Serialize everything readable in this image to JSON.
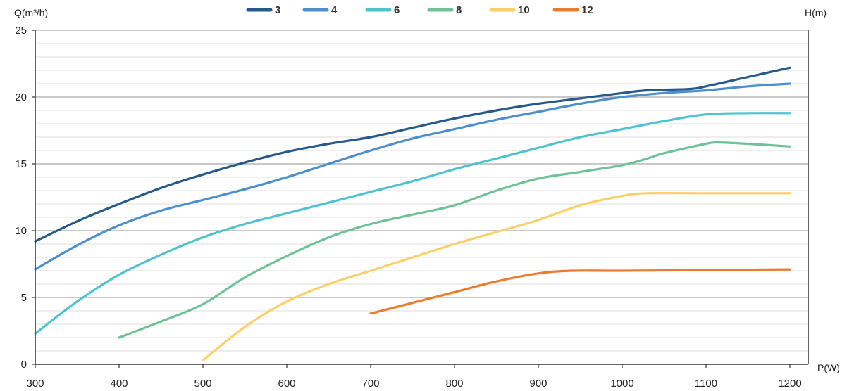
{
  "chart_data": {
    "type": "line",
    "y_title": "Q(m³/h)",
    "y2_title": "H(m)",
    "x_title": "P(W)",
    "xlim": [
      300,
      1200
    ],
    "ylim": [
      0,
      25
    ],
    "x_ticks": [
      300,
      400,
      500,
      600,
      700,
      800,
      900,
      1000,
      1100,
      1200
    ],
    "y_ticks": [
      0,
      5,
      10,
      15,
      20,
      25
    ],
    "minor_grid_step": 1,
    "legend_position": "top",
    "series": [
      {
        "name": "3",
        "color": "#255a8a",
        "x": [
          300,
          350,
          400,
          450,
          500,
          550,
          600,
          650,
          700,
          750,
          800,
          850,
          900,
          950,
          1000,
          1030,
          1080,
          1100,
          1150,
          1200
        ],
        "y": [
          9.2,
          10.7,
          12.0,
          13.2,
          14.2,
          15.1,
          15.9,
          16.5,
          17.0,
          17.7,
          18.4,
          19.0,
          19.5,
          19.9,
          20.3,
          20.5,
          20.6,
          20.8,
          21.5,
          22.2
        ]
      },
      {
        "name": "4",
        "color": "#4b8fcf",
        "x": [
          300,
          350,
          400,
          450,
          500,
          550,
          600,
          650,
          700,
          750,
          800,
          850,
          900,
          950,
          1000,
          1050,
          1100,
          1150,
          1200
        ],
        "y": [
          7.1,
          8.9,
          10.4,
          11.5,
          12.3,
          13.1,
          14.0,
          15.0,
          16.0,
          16.9,
          17.6,
          18.3,
          18.9,
          19.5,
          20.0,
          20.3,
          20.5,
          20.8,
          21.0
        ]
      },
      {
        "name": "6",
        "color": "#4fc2cf",
        "x": [
          300,
          350,
          400,
          450,
          500,
          550,
          600,
          650,
          700,
          750,
          800,
          850,
          900,
          950,
          1000,
          1050,
          1100,
          1150,
          1200
        ],
        "y": [
          2.3,
          4.7,
          6.7,
          8.2,
          9.5,
          10.5,
          11.3,
          12.1,
          12.9,
          13.7,
          14.6,
          15.4,
          16.2,
          17.0,
          17.6,
          18.2,
          18.7,
          18.8,
          18.8
        ]
      },
      {
        "name": "8",
        "color": "#6ec29a",
        "x": [
          400,
          450,
          500,
          550,
          600,
          650,
          700,
          750,
          800,
          850,
          900,
          950,
          1000,
          1030,
          1050,
          1100,
          1115,
          1150,
          1200
        ],
        "y": [
          2.0,
          3.2,
          4.5,
          6.5,
          8.1,
          9.5,
          10.5,
          11.2,
          11.9,
          13.0,
          13.9,
          14.4,
          14.9,
          15.4,
          15.8,
          16.5,
          16.6,
          16.5,
          16.3
        ]
      },
      {
        "name": "10",
        "color": "#fdcf6a",
        "x": [
          500,
          550,
          600,
          650,
          700,
          750,
          800,
          850,
          900,
          950,
          1000,
          1030,
          1100,
          1150,
          1200
        ],
        "y": [
          0.3,
          2.8,
          4.7,
          6.0,
          7.0,
          8.0,
          9.0,
          9.9,
          10.8,
          11.9,
          12.6,
          12.8,
          12.8,
          12.8,
          12.8
        ]
      },
      {
        "name": "12",
        "color": "#ec7b2d",
        "x": [
          700,
          750,
          800,
          850,
          900,
          940,
          1000,
          1100,
          1200
        ],
        "y": [
          3.8,
          4.6,
          5.4,
          6.2,
          6.8,
          7.0,
          7.0,
          7.05,
          7.1
        ]
      }
    ]
  }
}
